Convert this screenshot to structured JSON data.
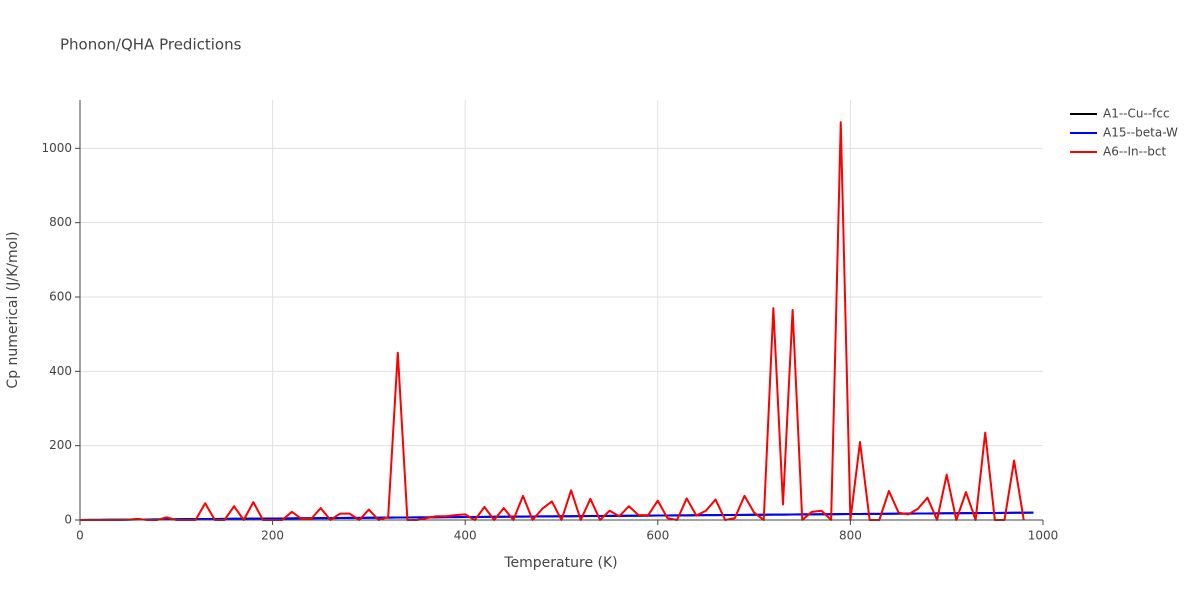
{
  "chart_data": {
    "type": "line",
    "title": "Phonon/QHA Predictions",
    "x_label": "Temperature (K)",
    "y_label": "Cp numerical (J/K/mol)",
    "x": [
      0,
      10,
      20,
      30,
      40,
      50,
      60,
      70,
      80,
      90,
      100,
      110,
      120,
      130,
      140,
      150,
      160,
      170,
      180,
      190,
      200,
      210,
      220,
      230,
      240,
      250,
      260,
      270,
      280,
      290,
      300,
      310,
      320,
      330,
      340,
      350,
      360,
      370,
      380,
      390,
      400,
      410,
      420,
      430,
      440,
      450,
      460,
      470,
      480,
      490,
      500,
      510,
      520,
      530,
      540,
      550,
      560,
      570,
      580,
      590,
      600,
      610,
      620,
      630,
      640,
      650,
      660,
      670,
      680,
      690,
      700,
      710,
      720,
      730,
      740,
      750,
      760,
      770,
      780,
      790,
      800,
      810,
      820,
      830,
      840,
      850,
      860,
      870,
      880,
      890,
      900,
      910,
      920,
      930,
      940,
      950,
      960,
      970,
      980,
      990
    ],
    "series": [
      {
        "name": "A1--Cu--fcc",
        "color": "#000000",
        "values": [
          0,
          0.2,
          0.4,
          0.6,
          0.8,
          1,
          1.2,
          1.4,
          1.6,
          1.8,
          2,
          2.2,
          2.4,
          2.6,
          2.8,
          3,
          3.2,
          3.4,
          3.6,
          3.8,
          4,
          4.2,
          4.4,
          4.6,
          4.8,
          5,
          5.2,
          5.4,
          5.6,
          5.8,
          6,
          6.2,
          6.4,
          6.6,
          6.8,
          7,
          7.2,
          7.4,
          7.6,
          7.8,
          8,
          8.2,
          8.4,
          8.6,
          8.8,
          9,
          9.2,
          9.4,
          9.6,
          9.8,
          10,
          10.2,
          10.4,
          10.6,
          10.8,
          11,
          11.2,
          11.4,
          11.6,
          11.8,
          12,
          12.2,
          12.4,
          12.6,
          12.8,
          13,
          13.2,
          13.4,
          13.6,
          13.8,
          14,
          14.2,
          14.4,
          14.6,
          14.8,
          15,
          15.2,
          15.4,
          15.6,
          15.8,
          16,
          16.2,
          16.4,
          16.6,
          16.8,
          17,
          17.2,
          17.4,
          17.6,
          17.8,
          18,
          18.2,
          18.4,
          18.6,
          18.8,
          19,
          19.2,
          19.4,
          19.6,
          19.8
        ]
      },
      {
        "name": "A15--beta-W",
        "color": "#0000ff",
        "values": [
          0,
          0.2,
          0.4,
          0.6,
          0.8,
          1,
          1.2,
          1.4,
          1.6,
          1.8,
          2,
          2.2,
          2.4,
          2.6,
          2.8,
          3,
          3.2,
          3.4,
          3.6,
          3.8,
          4,
          4.2,
          4.4,
          4.6,
          4.8,
          5,
          5.2,
          5.4,
          5.6,
          5.8,
          6,
          6.2,
          6.4,
          6.6,
          6.8,
          7,
          7.2,
          7.4,
          7.6,
          7.8,
          8,
          8.2,
          8.4,
          8.6,
          8.8,
          9,
          9.2,
          9.4,
          9.6,
          9.8,
          10,
          10.2,
          10.4,
          10.6,
          10.8,
          11,
          11.2,
          11.4,
          11.6,
          11.8,
          12,
          12.2,
          12.4,
          12.6,
          12.8,
          13,
          13.2,
          13.4,
          13.6,
          13.8,
          14,
          14.2,
          14.4,
          14.6,
          14.8,
          15,
          15.2,
          15.4,
          15.6,
          15.8,
          16,
          16.2,
          16.4,
          16.6,
          16.8,
          17,
          17.2,
          17.4,
          17.6,
          17.8,
          18,
          18.2,
          18.4,
          18.6,
          18.8,
          19,
          19.2,
          19.4,
          19.6,
          19.8
        ]
      },
      {
        "name": "A6--In--bct",
        "color": "#ff0000",
        "values": [
          0,
          0,
          0,
          0,
          0,
          1,
          3,
          0,
          0,
          7,
          0,
          0,
          0,
          45,
          0,
          0,
          37,
          0,
          48,
          0,
          0,
          0,
          22,
          3,
          3,
          32,
          0,
          17,
          17,
          0,
          28,
          0,
          8,
          450,
          0,
          0,
          5,
          10,
          10,
          13,
          15,
          0,
          35,
          0,
          32,
          0,
          65,
          0,
          30,
          50,
          0,
          80,
          0,
          57,
          0,
          25,
          10,
          37,
          13,
          13,
          52,
          5,
          0,
          58,
          12,
          25,
          55,
          0,
          5,
          65,
          20,
          0,
          570,
          42,
          565,
          0,
          22,
          25,
          0,
          1070,
          0,
          210,
          0,
          0,
          78,
          20,
          15,
          30,
          60,
          0,
          122,
          0,
          75,
          0,
          235,
          0,
          0,
          160,
          0,
          null
        ]
      }
    ],
    "xlim": [
      0,
      1000
    ],
    "xticks": [
      0,
      200,
      400,
      600,
      800,
      1000
    ],
    "ylim": [
      0,
      1130
    ],
    "yticks": [
      0,
      200,
      400,
      600,
      800,
      1000
    ],
    "grid": true,
    "legend": "right"
  }
}
